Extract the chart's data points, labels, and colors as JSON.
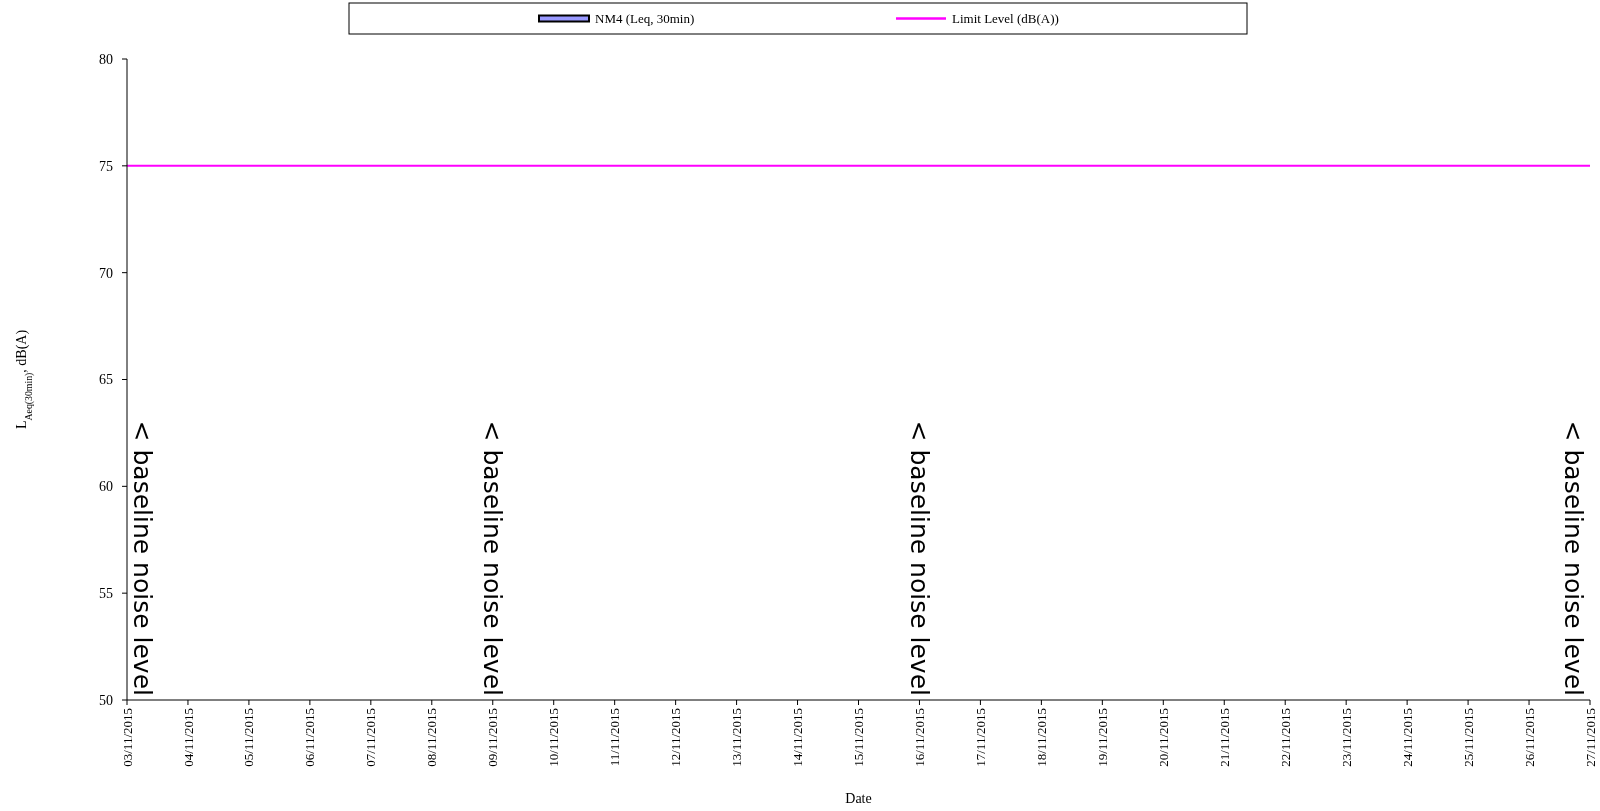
{
  "chart_data": {
    "type": "bar",
    "xlabel": "Date",
    "ylabel": "L$_{Aeq(30min)}$, dB(A)",
    "x": [
      "2015-11-03",
      "2015-11-09",
      "2015-11-16",
      "2015-11-27"
    ],
    "series": [
      {
        "name": "NM4 (Leq, 30min)",
        "color": "#9999ff",
        "values": [
          50,
          50,
          50,
          50
        ]
      },
      {
        "name": "Limit Level (dB(A))",
        "type": "line",
        "color": "#ff00ff",
        "x": [
          "2015-11-03",
          "2015-11-27"
        ],
        "values": [
          75,
          75
        ]
      }
    ],
    "annotations": [
      {
        "text": "< baseline noise level",
        "x": "2015-11-03",
        "y": 50
      },
      {
        "text": "< baseline noise level",
        "x": "2015-11-09",
        "y": 50
      },
      {
        "text": "< baseline noise level",
        "x": "2015-11-16",
        "y": 50
      },
      {
        "text": "< baseline noise level",
        "x": "2015-11-27",
        "y": 50
      }
    ],
    "xlim": [
      "2015-11-03",
      "2015-11-27"
    ],
    "xticks": [
      {
        "value": "2015-11-03",
        "label": "03/11/2015"
      },
      {
        "value": "2015-11-04",
        "label": "04/11/2015"
      },
      {
        "value": "2015-11-05",
        "label": "05/11/2015"
      },
      {
        "value": "2015-11-06",
        "label": "06/11/2015"
      },
      {
        "value": "2015-11-07",
        "label": "07/11/2015"
      },
      {
        "value": "2015-11-08",
        "label": "08/11/2015"
      },
      {
        "value": "2015-11-09",
        "label": "09/11/2015"
      },
      {
        "value": "2015-11-10",
        "label": "10/11/2015"
      },
      {
        "value": "2015-11-11",
        "label": "11/11/2015"
      },
      {
        "value": "2015-11-12",
        "label": "12/11/2015"
      },
      {
        "value": "2015-11-13",
        "label": "13/11/2015"
      },
      {
        "value": "2015-11-14",
        "label": "14/11/2015"
      },
      {
        "value": "2015-11-15",
        "label": "15/11/2015"
      },
      {
        "value": "2015-11-16",
        "label": "16/11/2015"
      },
      {
        "value": "2015-11-17",
        "label": "17/11/2015"
      },
      {
        "value": "2015-11-18",
        "label": "18/11/2015"
      },
      {
        "value": "2015-11-19",
        "label": "19/11/2015"
      },
      {
        "value": "2015-11-20",
        "label": "20/11/2015"
      },
      {
        "value": "2015-11-21",
        "label": "21/11/2015"
      },
      {
        "value": "2015-11-22",
        "label": "22/11/2015"
      },
      {
        "value": "2015-11-23",
        "label": "23/11/2015"
      },
      {
        "value": "2015-11-24",
        "label": "24/11/2015"
      },
      {
        "value": "2015-11-25",
        "label": "25/11/2015"
      },
      {
        "value": "2015-11-26",
        "label": "26/11/2015"
      },
      {
        "value": "2015-11-27",
        "label": "27/11/2015"
      }
    ],
    "ylim": [
      50,
      80
    ],
    "yticks": [
      50,
      55,
      60,
      65,
      70,
      75,
      80
    ],
    "grid": false,
    "legend": "top"
  }
}
